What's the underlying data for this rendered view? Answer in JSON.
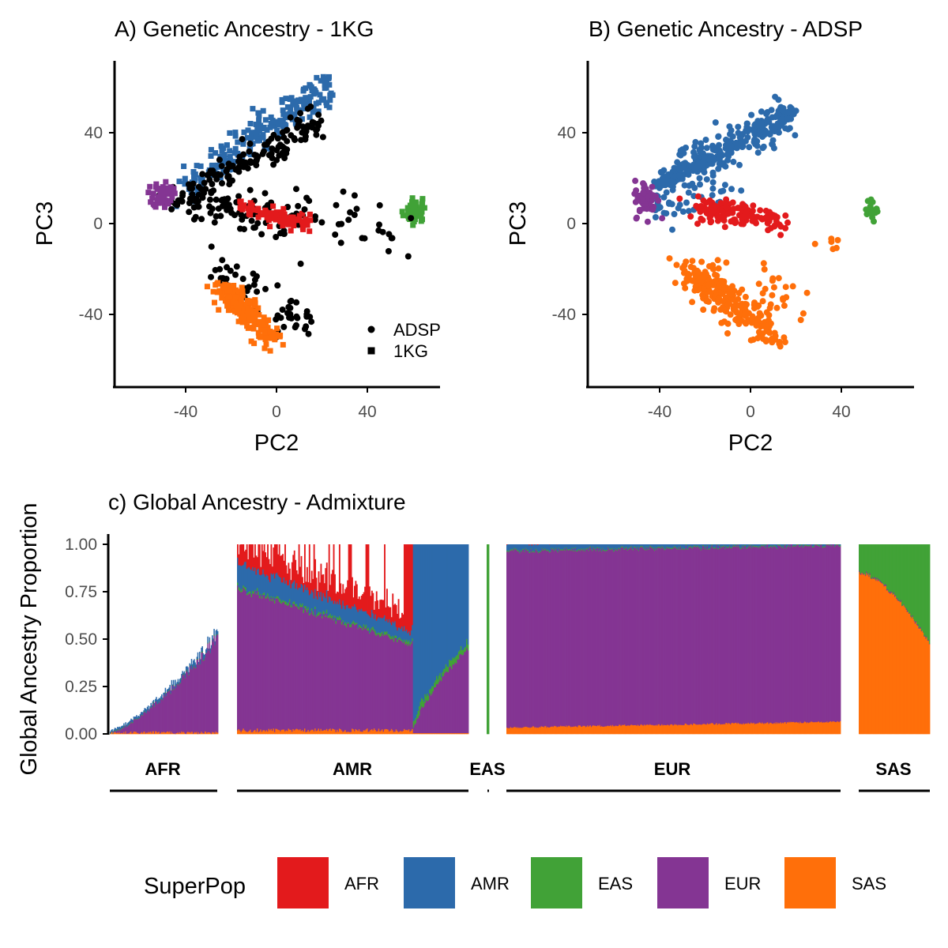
{
  "colors": {
    "AFR": "#E31A1C",
    "AMR": "#2C6AAB",
    "EAS": "#41A237",
    "EUR": "#843593",
    "SAS": "#FF6F0A",
    "ADSP": "#000000"
  },
  "chart_data": [
    {
      "id": "A",
      "type": "scatter",
      "title": "A) Genetic Ancestry - 1KG",
      "xlabel": "PC2",
      "ylabel": "PC3",
      "xlim": [
        -70,
        72
      ],
      "ylim": [
        -72,
        72
      ],
      "xticks": [
        "-40",
        "0",
        "40"
      ],
      "yticks": [
        "-40",
        "0",
        "40"
      ],
      "shape_legend": [
        {
          "shape": "circle",
          "label": "ADSP"
        },
        {
          "shape": "square",
          "label": "1KG"
        }
      ],
      "clusters": [
        {
          "group": "AMR",
          "shape": "square",
          "n": 230,
          "from": [
            -40,
            16
          ],
          "to": [
            24,
            61
          ],
          "spread": 3.5
        },
        {
          "group": "ADSP",
          "shape": "circle",
          "n": 140,
          "from": [
            -40,
            12
          ],
          "to": [
            18,
            45
          ],
          "spread": 3.5
        },
        {
          "group": "ADSP",
          "shape": "circle",
          "n": 90,
          "from": [
            -45,
            8
          ],
          "to": [
            10,
            2
          ],
          "spread": 4
        },
        {
          "group": "AFR",
          "shape": "square",
          "n": 80,
          "from": [
            -16,
            8
          ],
          "to": [
            14,
            0
          ],
          "spread": 2
        },
        {
          "group": "EUR",
          "shape": "square",
          "n": 55,
          "center": [
            -50,
            13
          ],
          "spread": [
            2.2,
            3
          ]
        },
        {
          "group": "ADSP",
          "shape": "circle",
          "n": 60,
          "from": [
            -30,
            -18
          ],
          "to": [
            12,
            -46
          ],
          "spread": 4
        },
        {
          "group": "SAS",
          "shape": "square",
          "n": 170,
          "from": [
            -25,
            -28
          ],
          "to": [
            -2,
            -50
          ],
          "spread": 3
        },
        {
          "group": "EAS",
          "shape": "square",
          "n": 50,
          "center": [
            61,
            6
          ],
          "spread": [
            2,
            3
          ]
        },
        {
          "group": "ADSP",
          "shape": "circle",
          "n": 30,
          "from": [
            15,
            5
          ],
          "to": [
            55,
            -5
          ],
          "spread": 6
        }
      ]
    },
    {
      "id": "B",
      "type": "scatter",
      "title": "B) Genetic Ancestry - ADSP",
      "xlabel": "PC2",
      "ylabel": "PC3",
      "xlim": [
        -70,
        72
      ],
      "ylim": [
        -72,
        72
      ],
      "xticks": [
        "-40",
        "0",
        "40"
      ],
      "yticks": [
        "-40",
        "0",
        "40"
      ],
      "clusters": [
        {
          "group": "AMR",
          "shape": "circle",
          "n": 320,
          "from": [
            -40,
            17
          ],
          "to": [
            17,
            48
          ],
          "spread": 3.5
        },
        {
          "group": "AMR",
          "shape": "circle",
          "n": 40,
          "from": [
            -40,
            5
          ],
          "to": [
            -10,
            15
          ],
          "spread": 5
        },
        {
          "group": "AFR",
          "shape": "circle",
          "n": 140,
          "from": [
            -25,
            7
          ],
          "to": [
            14,
            1
          ],
          "spread": 2.5
        },
        {
          "group": "EUR",
          "shape": "circle",
          "n": 60,
          "center": [
            -46,
            11
          ],
          "spread": [
            2.5,
            4
          ]
        },
        {
          "group": "SAS",
          "shape": "circle",
          "n": 240,
          "from": [
            -28,
            -20
          ],
          "to": [
            10,
            -48
          ],
          "spread": 4
        },
        {
          "group": "SAS",
          "shape": "circle",
          "n": 20,
          "from": [
            0,
            -20
          ],
          "to": [
            18,
            -40
          ],
          "spread": 4
        },
        {
          "group": "EAS",
          "shape": "circle",
          "n": 20,
          "center": [
            54,
            6
          ],
          "spread": [
            1.5,
            2
          ]
        },
        {
          "group": "SAS",
          "shape": "circle",
          "n": 6,
          "from": [
            32,
            -12
          ],
          "to": [
            40,
            -5
          ],
          "spread": 2
        }
      ]
    },
    {
      "id": "C",
      "type": "bar",
      "title": "c) Global Ancestry - Admixture",
      "ylabel": "Global Ancestry Proportion",
      "ylim": [
        0,
        1
      ],
      "yticks": [
        "0.00",
        "0.25",
        "0.50",
        "0.75",
        "1.00"
      ],
      "stack_order": [
        "SAS",
        "EUR",
        "EAS",
        "AMR",
        "AFR"
      ],
      "facets": [
        {
          "label": "AFR",
          "n": 120,
          "type": "afr",
          "eur_end": 0.5,
          "amr_end": 0.03
        },
        {
          "label": "AMR",
          "n": 200,
          "type": "amr",
          "split": 0.76,
          "eur_start": 0.75,
          "eur_end": 0.45,
          "amr_start": 0.12,
          "amr_end": 0.06,
          "afr_gap_end": 0.12
        },
        {
          "label": "EAS",
          "n": 2,
          "type": "eas"
        },
        {
          "label": "EUR",
          "n": 360,
          "type": "eur",
          "eur": 0.93,
          "sas_start": 0.03,
          "sas_end": 0.06
        },
        {
          "label": "SAS",
          "n": 80,
          "type": "sas",
          "sas_start": 0.85,
          "sas_end": 0.48,
          "eur": 0.04
        }
      ]
    }
  ],
  "legend": {
    "title": "SuperPop",
    "items": [
      "AFR",
      "AMR",
      "EAS",
      "EUR",
      "SAS"
    ]
  }
}
